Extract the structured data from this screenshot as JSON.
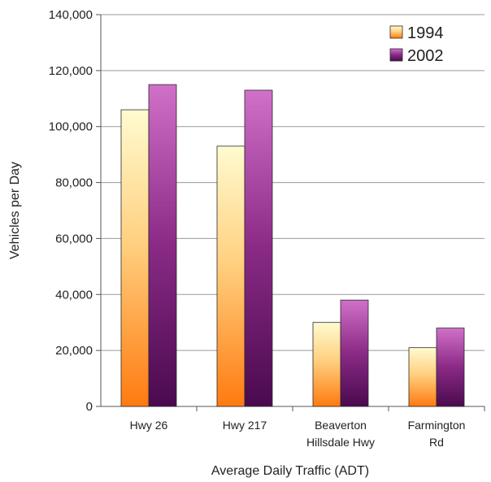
{
  "chart_data": {
    "type": "bar",
    "categories": [
      [
        "Hwy 26"
      ],
      [
        "Hwy 217"
      ],
      [
        "Beaverton",
        "Hillsdale Hwy"
      ],
      [
        "Farmington",
        "Rd"
      ]
    ],
    "series": [
      {
        "name": "1994",
        "values": [
          106000,
          93000,
          30000,
          21000
        ]
      },
      {
        "name": "2002",
        "values": [
          115000,
          113000,
          38000,
          28000
        ]
      }
    ],
    "xlabel": "Average Daily Traffic (ADT)",
    "ylabel": "Vehicles per Day",
    "ylim": [
      0,
      140000
    ],
    "yticks": [
      "0",
      "20,000",
      "40,000",
      "60,000",
      "80,000",
      "100,000",
      "120,000",
      "140,000"
    ],
    "grid": true,
    "legend": "top-right",
    "colors": {
      "series1_top": "#fffbd0",
      "series1_mid": "#ffc060",
      "series1_bottom": "#ff7a10",
      "series2_top": "#d070c8",
      "series2_mid": "#8a2a86",
      "series2_bottom": "#4a0a4e"
    }
  }
}
